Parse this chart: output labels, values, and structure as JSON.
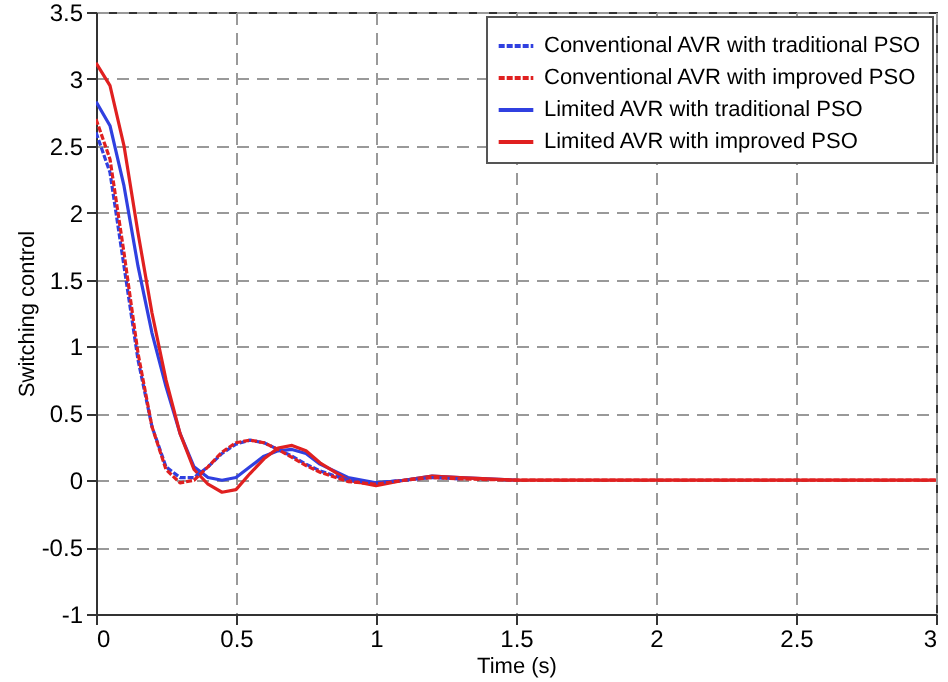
{
  "chart_data": {
    "type": "line",
    "xlabel": "Time (s)",
    "ylabel": "Switching control",
    "xlim": [
      0,
      3
    ],
    "ylim": [
      -1,
      3.5
    ],
    "xticks": [
      0,
      0.5,
      1,
      1.5,
      2,
      2.5,
      3
    ],
    "yticks": [
      -1,
      -0.5,
      0,
      0.5,
      1,
      1.5,
      2,
      2.5,
      3,
      3.5
    ],
    "grid": true,
    "legend": "top right",
    "marker": "none",
    "x": [
      0,
      0.05,
      0.1,
      0.15,
      0.2,
      0.25,
      0.3,
      0.35,
      0.4,
      0.45,
      0.5,
      0.55,
      0.6,
      0.65,
      0.7,
      0.75,
      0.8,
      0.9,
      1.0,
      1.1,
      1.2,
      1.3,
      1.5,
      2,
      3
    ],
    "series": [
      {
        "name": "Conventional AVR with traditional PSO",
        "color": "#3040e0",
        "line_style": "dashed",
        "values": [
          2.6,
          2.3,
          1.6,
          0.9,
          0.4,
          0.1,
          0.02,
          0.02,
          0.1,
          0.2,
          0.27,
          0.3,
          0.28,
          0.23,
          0.18,
          0.12,
          0.07,
          0.0,
          -0.02,
          0.0,
          0.02,
          0.01,
          null,
          null,
          null
        ]
      },
      {
        "name": "Conventional AVR with improved PSO",
        "color": "#e02020",
        "line_style": "dashed",
        "values": [
          2.7,
          2.4,
          1.7,
          0.95,
          0.4,
          0.08,
          -0.02,
          0.0,
          0.1,
          0.21,
          0.28,
          0.3,
          0.28,
          0.23,
          0.17,
          0.11,
          0.06,
          -0.01,
          -0.03,
          0.0,
          0.02,
          0.01,
          0,
          0,
          0
        ]
      },
      {
        "name": "Limited AVR with traditional PSO",
        "color": "#3040e0",
        "line_style": "solid",
        "values": [
          2.83,
          2.65,
          2.2,
          1.6,
          1.1,
          0.7,
          0.35,
          0.1,
          0.02,
          0.0,
          0.02,
          0.1,
          0.18,
          0.22,
          0.23,
          0.2,
          0.12,
          0.02,
          -0.02,
          0.0,
          0.03,
          0.02,
          0,
          null,
          null
        ]
      },
      {
        "name": "Limited AVR with improved PSO",
        "color": "#e02020",
        "line_style": "solid",
        "values": [
          3.12,
          2.95,
          2.5,
          1.85,
          1.25,
          0.75,
          0.35,
          0.08,
          -0.03,
          -0.09,
          -0.07,
          0.05,
          0.16,
          0.24,
          0.26,
          0.22,
          0.13,
          0.0,
          -0.04,
          0.0,
          0.03,
          0.02,
          0,
          0,
          0
        ]
      }
    ]
  }
}
